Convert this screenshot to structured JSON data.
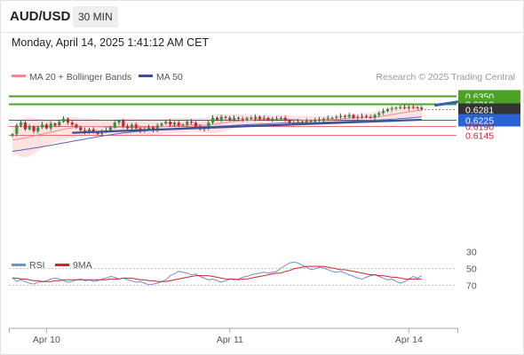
{
  "header": {
    "symbol": "AUD/USD",
    "timeframe": "30 MIN",
    "datetime": "Monday, April 14, 2025 1:41:12 AM CET"
  },
  "legend": {
    "ma20": "MA 20 + Bollinger Bands",
    "ma50": "MA 50",
    "credit": "Research © 2025 Trading Central",
    "rsi": "RSI",
    "rsi_ma": "9MA"
  },
  "colors": {
    "resistance": "#4aa324",
    "pivot": "#2a63d6",
    "support": "#ec6f6f",
    "ma20": "#f08a8a",
    "ma50": "#5566bb",
    "bollinger": "#fde2e2",
    "trendline": "#3d4f95",
    "arrow": "#2f63b0",
    "candle_up": "#2f9a3a",
    "candle_down": "#d3242a",
    "rsi": "#6d8fd8",
    "rsi_ma": "#d3242a"
  },
  "chart_data": [
    {
      "type": "candlestick",
      "title": "AUD/USD",
      "timeframe": "30 MIN",
      "x_ticks": [
        "Apr 10",
        "Apr 11",
        "Apr 14"
      ],
      "price_levels": [
        {
          "label": "0.6350",
          "value": 0.635,
          "kind": "resistance"
        },
        {
          "label": "0.6310",
          "value": 0.631,
          "kind": "resistance"
        },
        {
          "label": "0.6281",
          "value": 0.6281,
          "kind": "last"
        },
        {
          "label": "0.6225",
          "value": 0.6225,
          "kind": "pivot"
        },
        {
          "label": "0.6190",
          "value": 0.619,
          "kind": "support"
        },
        {
          "label": "0.6145",
          "value": 0.6145,
          "kind": "support"
        }
      ],
      "close_series": [
        0.615,
        0.6195,
        0.621,
        0.6175,
        0.619,
        0.6165,
        0.6185,
        0.62,
        0.618,
        0.6205,
        0.6195,
        0.6215,
        0.623,
        0.621,
        0.62,
        0.6185,
        0.617,
        0.616,
        0.6175,
        0.616,
        0.615,
        0.6165,
        0.617,
        0.6185,
        0.621,
        0.622,
        0.619,
        0.618,
        0.62,
        0.618,
        0.6165,
        0.6175,
        0.6185,
        0.617,
        0.6195,
        0.6205,
        0.6215,
        0.62,
        0.621,
        0.6195,
        0.62,
        0.6215,
        0.621,
        0.619,
        0.6175,
        0.618,
        0.621,
        0.6235,
        0.6225,
        0.624,
        0.6235,
        0.6225,
        0.6235,
        0.623,
        0.6225,
        0.6235,
        0.623,
        0.624,
        0.623,
        0.6235,
        0.6225,
        0.623,
        0.623,
        0.6235,
        0.622,
        0.621,
        0.6205,
        0.6215,
        0.621,
        0.622,
        0.6215,
        0.6225,
        0.622,
        0.623,
        0.6235,
        0.6235,
        0.624,
        0.6245,
        0.624,
        0.625,
        0.6235,
        0.624,
        0.6245,
        0.624,
        0.6235,
        0.625,
        0.626,
        0.627,
        0.628,
        0.6285,
        0.6288,
        0.629,
        0.6285,
        0.6292,
        0.629,
        0.6288,
        0.6281
      ],
      "ma20_series": [
        0.612,
        0.6122,
        0.6126,
        0.613,
        0.6135,
        0.614,
        0.6146,
        0.615,
        0.6155,
        0.616,
        0.6165,
        0.617,
        0.6175,
        0.618,
        0.6183,
        0.6186,
        0.6188,
        0.6189,
        0.619,
        0.619,
        0.6189,
        0.6188,
        0.6186,
        0.6184,
        0.6185,
        0.6186,
        0.6187,
        0.6186,
        0.6186,
        0.6186,
        0.6185,
        0.6185,
        0.6186,
        0.6186,
        0.6187,
        0.6189,
        0.6191,
        0.6193,
        0.6195,
        0.6196,
        0.6197,
        0.6198,
        0.6199,
        0.6198,
        0.6197,
        0.6197,
        0.6198,
        0.6201,
        0.6204,
        0.6208,
        0.6211,
        0.6214,
        0.6217,
        0.6219,
        0.6221,
        0.6223,
        0.6224,
        0.6226,
        0.6227,
        0.6228,
        0.6228,
        0.6229,
        0.6229,
        0.623,
        0.6229,
        0.6228,
        0.6226,
        0.6225,
        0.6224,
        0.6223,
        0.6223,
        0.6223,
        0.6224,
        0.6224,
        0.6225,
        0.6226,
        0.6227,
        0.6229,
        0.6231,
        0.6233,
        0.6234,
        0.6235,
        0.6236,
        0.6237,
        0.6238,
        0.624,
        0.6242,
        0.6245,
        0.6248,
        0.6252,
        0.6256,
        0.626,
        0.6263,
        0.6267,
        0.627,
        0.6273,
        0.6275
      ],
      "ma50_series": [
        0.606,
        0.6063,
        0.6066,
        0.607,
        0.6073,
        0.6077,
        0.608,
        0.6084,
        0.6088,
        0.6092,
        0.6096,
        0.61,
        0.6104,
        0.6108,
        0.6112,
        0.6116,
        0.612,
        0.6124,
        0.6128,
        0.6132,
        0.6136,
        0.614,
        0.6143,
        0.6146,
        0.615,
        0.6153,
        0.6156,
        0.6158,
        0.6161,
        0.6163,
        0.6165,
        0.6167,
        0.6169,
        0.617,
        0.6172,
        0.6174,
        0.6176,
        0.6178,
        0.6179,
        0.6181,
        0.6182,
        0.6184,
        0.6185,
        0.6186,
        0.6187,
        0.6188,
        0.6189,
        0.619,
        0.6191,
        0.6192,
        0.6193,
        0.6194,
        0.6196,
        0.6197,
        0.6198,
        0.6199,
        0.62,
        0.6201,
        0.6202,
        0.6203,
        0.6204,
        0.6205,
        0.6206,
        0.6207,
        0.6207,
        0.6208,
        0.6208,
        0.6209,
        0.6209,
        0.621,
        0.621,
        0.6211,
        0.6211,
        0.6212,
        0.6213,
        0.6213,
        0.6214,
        0.6215,
        0.6216,
        0.6217,
        0.6218,
        0.6219,
        0.622,
        0.6221,
        0.6222,
        0.6223,
        0.6224,
        0.6225,
        0.6226,
        0.6228,
        0.6229,
        0.6231,
        0.6232,
        0.6234,
        0.6236,
        0.6238,
        0.624
      ],
      "bollinger_upper": [
        0.6185,
        0.621,
        0.6225,
        0.6235,
        0.624,
        0.6236,
        0.623,
        0.6228,
        0.6226,
        0.6225,
        0.6227,
        0.623,
        0.6235,
        0.624,
        0.624,
        0.6238,
        0.6236,
        0.6234,
        0.6232,
        0.623,
        0.6228,
        0.6226,
        0.6224,
        0.6222,
        0.6226,
        0.623,
        0.6232,
        0.6232,
        0.6232,
        0.6231,
        0.623,
        0.6228,
        0.6228,
        0.6228,
        0.6228,
        0.623,
        0.6232,
        0.6234,
        0.6236,
        0.6236,
        0.6236,
        0.6236,
        0.6236,
        0.6235,
        0.6235,
        0.6236,
        0.624,
        0.625,
        0.6252,
        0.6254,
        0.6254,
        0.6254,
        0.6254,
        0.6253,
        0.6252,
        0.6252,
        0.6251,
        0.6251,
        0.625,
        0.625,
        0.6249,
        0.6249,
        0.6249,
        0.6249,
        0.6249,
        0.6248,
        0.6247,
        0.6246,
        0.6245,
        0.6244,
        0.6244,
        0.6244,
        0.6244,
        0.6245,
        0.6246,
        0.6247,
        0.6248,
        0.625,
        0.6252,
        0.6254,
        0.6255,
        0.6257,
        0.6259,
        0.6261,
        0.6262,
        0.6265,
        0.627,
        0.6277,
        0.6284,
        0.629,
        0.6296,
        0.63,
        0.6303,
        0.6306,
        0.6308,
        0.6309,
        0.631
      ],
      "bollinger_lower": [
        0.6055,
        0.604,
        0.603,
        0.603,
        0.6035,
        0.6045,
        0.606,
        0.6075,
        0.609,
        0.61,
        0.6108,
        0.6114,
        0.612,
        0.6125,
        0.613,
        0.6135,
        0.614,
        0.6144,
        0.6148,
        0.615,
        0.615,
        0.615,
        0.6148,
        0.6146,
        0.6144,
        0.6142,
        0.6142,
        0.614,
        0.614,
        0.6141,
        0.6141,
        0.6142,
        0.6144,
        0.6144,
        0.6146,
        0.6148,
        0.615,
        0.6152,
        0.6154,
        0.6156,
        0.6158,
        0.616,
        0.6162,
        0.6161,
        0.616,
        0.6158,
        0.6156,
        0.6152,
        0.6156,
        0.6162,
        0.6168,
        0.6174,
        0.618,
        0.6185,
        0.619,
        0.6194,
        0.6197,
        0.6201,
        0.6204,
        0.6206,
        0.6207,
        0.6209,
        0.6209,
        0.6211,
        0.6209,
        0.6208,
        0.6205,
        0.6204,
        0.6203,
        0.6202,
        0.6202,
        0.6202,
        0.6204,
        0.6203,
        0.6204,
        0.6205,
        0.6206,
        0.6208,
        0.621,
        0.6212,
        0.6213,
        0.6213,
        0.6213,
        0.6213,
        0.6214,
        0.6215,
        0.6214,
        0.6213,
        0.6212,
        0.6214,
        0.6216,
        0.622,
        0.6223,
        0.6228,
        0.6232,
        0.6237,
        0.624
      ],
      "trendline": [
        {
          "i": 14,
          "y": 0.6157
        },
        {
          "i": 96,
          "y": 0.6225
        }
      ],
      "forecast_arrow": [
        {
          "i": 99,
          "y": 0.63
        },
        {
          "i": 108,
          "y": 0.6345
        }
      ]
    },
    {
      "type": "line",
      "title": "RSI",
      "y_ticks": [
        "70",
        "50",
        "30"
      ],
      "ylim": [
        20,
        80
      ],
      "series": [
        {
          "name": "RSI",
          "values": [
            61,
            66,
            64,
            66,
            68,
            69,
            67,
            66,
            65,
            63,
            62,
            63,
            65,
            67,
            66,
            64,
            63,
            65,
            64,
            66,
            65,
            63,
            62,
            60,
            61,
            63,
            62,
            64,
            65,
            67,
            66,
            68,
            70,
            69,
            68,
            66,
            64,
            59,
            57,
            54,
            55,
            56,
            58,
            57,
            60,
            62,
            64,
            63,
            65,
            67,
            65,
            63,
            64,
            63,
            61,
            60,
            58,
            57,
            56,
            55,
            56,
            55,
            54,
            50,
            47,
            44,
            43,
            44,
            47,
            49,
            52,
            51,
            49,
            50,
            52,
            54,
            55,
            54,
            56,
            58,
            60,
            62,
            63,
            61,
            59,
            58,
            60,
            62,
            64,
            63,
            66,
            68,
            66,
            63,
            60,
            62,
            59
          ]
        },
        {
          "name": "9MA",
          "values": [
            62,
            62,
            63,
            63,
            64,
            65,
            65,
            66,
            66,
            66,
            65,
            65,
            64,
            64,
            64,
            64,
            64,
            64,
            64,
            64,
            64,
            64,
            64,
            63,
            63,
            63,
            62,
            62,
            62,
            63,
            64,
            64,
            65,
            65,
            66,
            66,
            66,
            65,
            64,
            63,
            62,
            61,
            60,
            59,
            59,
            59,
            59,
            60,
            61,
            62,
            63,
            63,
            63,
            64,
            63,
            63,
            62,
            61,
            60,
            59,
            58,
            57,
            56,
            56,
            54,
            53,
            51,
            50,
            49,
            48,
            48,
            48,
            48,
            48,
            49,
            50,
            51,
            52,
            52,
            53,
            54,
            55,
            56,
            57,
            58,
            58,
            59,
            59,
            60,
            61,
            61,
            62,
            63,
            63,
            63,
            63,
            63
          ]
        }
      ]
    }
  ]
}
